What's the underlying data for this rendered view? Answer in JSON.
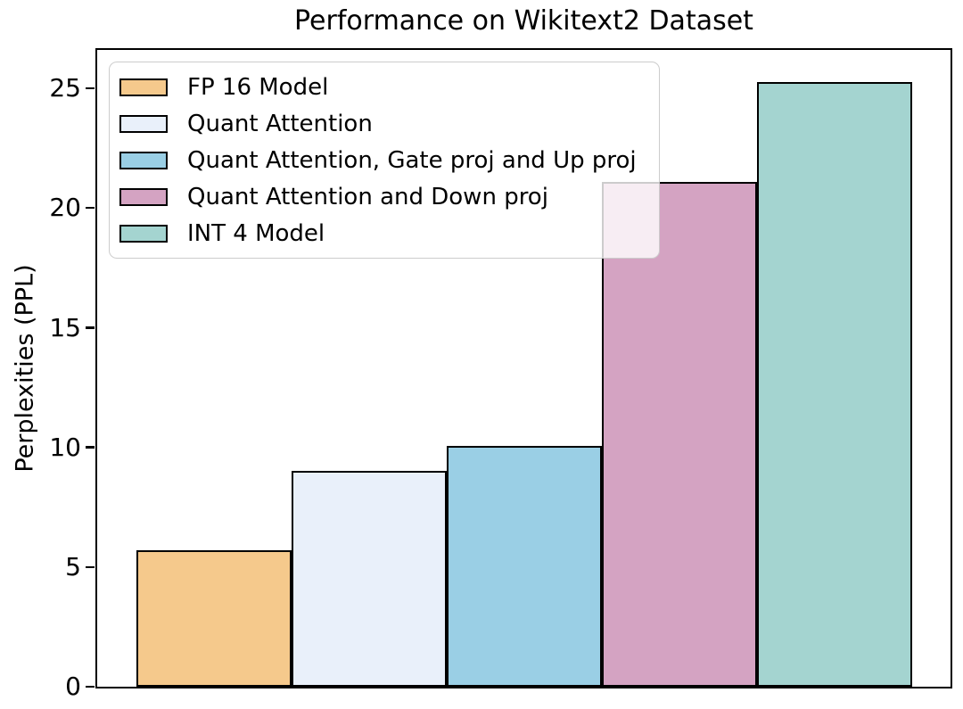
{
  "chart_data": {
    "type": "bar",
    "title": "Performance on Wikitext2 Dataset",
    "xlabel": "",
    "ylabel": "Perplexities (PPL)",
    "categories": [
      "FP 16 Model",
      "Quant Attention",
      "Quant Attention, Gate proj and Up proj",
      "Quant Attention and Down proj",
      "INT 4 Model"
    ],
    "values": [
      5.7,
      9.0,
      10.05,
      21.1,
      25.25
    ],
    "bar_colors": [
      "#F5C98C",
      "#E9F0FA",
      "#9ACFE5",
      "#D4A3C2",
      "#A4D4D0"
    ],
    "bar_edge_color": "#000000",
    "yticks": [
      0,
      5,
      10,
      15,
      20,
      25
    ],
    "ylim": [
      0,
      26.6
    ],
    "x_tick_labels": [],
    "grid": false,
    "legend": {
      "position": "upper left",
      "background_alpha": 0.8,
      "entries": [
        "FP 16 Model",
        "Quant Attention",
        "Quant Attention, Gate proj and Up proj",
        "Quant Attention and Down proj",
        "INT 4 Model"
      ]
    }
  }
}
